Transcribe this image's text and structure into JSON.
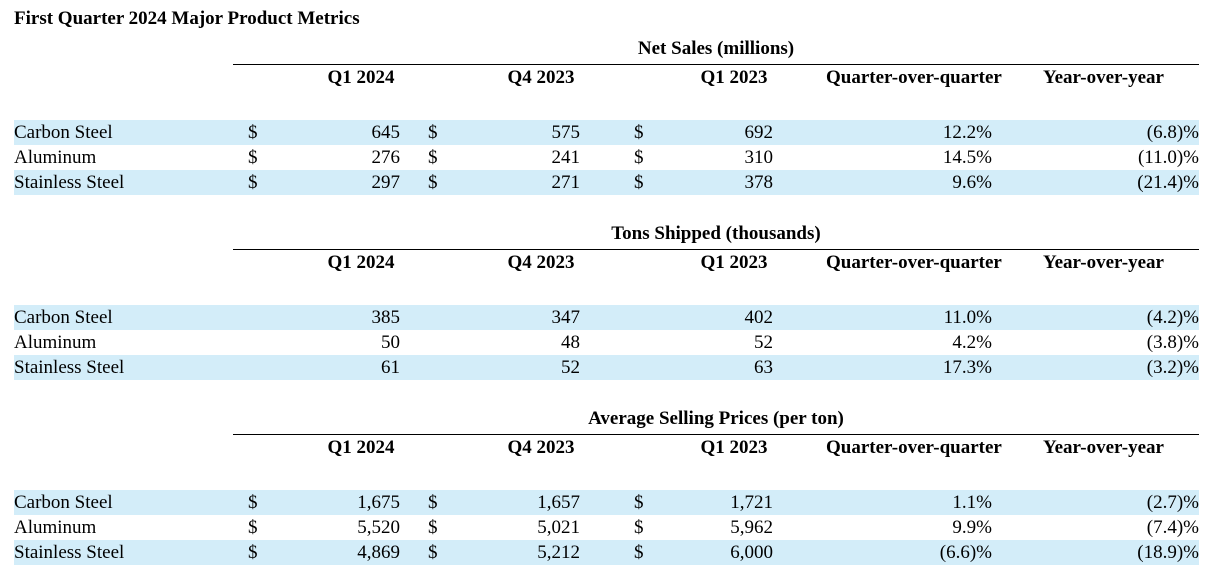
{
  "title": "First Quarter 2024 Major Product Metrics",
  "columns": [
    "Q1 2024",
    "Q4 2023",
    "Q1 2023",
    "Quarter-over-quarter",
    "Year-over-year"
  ],
  "sections": [
    {
      "title": "Net Sales (millions)",
      "rows": [
        {
          "label": "Carbon Steel",
          "cur": [
            "$",
            "$",
            "$"
          ],
          "values": [
            "645",
            "575",
            "692",
            "12.2%",
            "(6.8)%"
          ]
        },
        {
          "label": "Aluminum",
          "cur": [
            "$",
            "$",
            "$"
          ],
          "values": [
            "276",
            "241",
            "310",
            "14.5%",
            "(11.0)%"
          ]
        },
        {
          "label": "Stainless Steel",
          "cur": [
            "$",
            "$",
            "$"
          ],
          "values": [
            "297",
            "271",
            "378",
            "9.6%",
            "(21.4)%"
          ]
        }
      ]
    },
    {
      "title": "Tons Shipped (thousands)",
      "rows": [
        {
          "label": "Carbon Steel",
          "cur": [
            "",
            "",
            ""
          ],
          "values": [
            "385",
            "347",
            "402",
            "11.0%",
            "(4.2)%"
          ]
        },
        {
          "label": "Aluminum",
          "cur": [
            "",
            "",
            ""
          ],
          "values": [
            "50",
            "48",
            "52",
            "4.2%",
            "(3.8)%"
          ]
        },
        {
          "label": "Stainless Steel",
          "cur": [
            "",
            "",
            ""
          ],
          "values": [
            "61",
            "52",
            "63",
            "17.3%",
            "(3.2)%"
          ]
        }
      ]
    },
    {
      "title": "Average Selling Prices (per ton)",
      "rows": [
        {
          "label": "Carbon Steel",
          "cur": [
            "$",
            "$",
            "$"
          ],
          "values": [
            "1,675",
            "1,657",
            "1,721",
            "1.1%",
            "(2.7)%"
          ]
        },
        {
          "label": "Aluminum",
          "cur": [
            "$",
            "$",
            "$"
          ],
          "values": [
            "5,520",
            "5,021",
            "5,962",
            "9.9%",
            "(7.4)%"
          ]
        },
        {
          "label": "Stainless Steel",
          "cur": [
            "$",
            "$",
            "$"
          ],
          "values": [
            "4,869",
            "5,212",
            "6,000",
            "(6.6)%",
            "(18.9)%"
          ]
        }
      ]
    }
  ]
}
